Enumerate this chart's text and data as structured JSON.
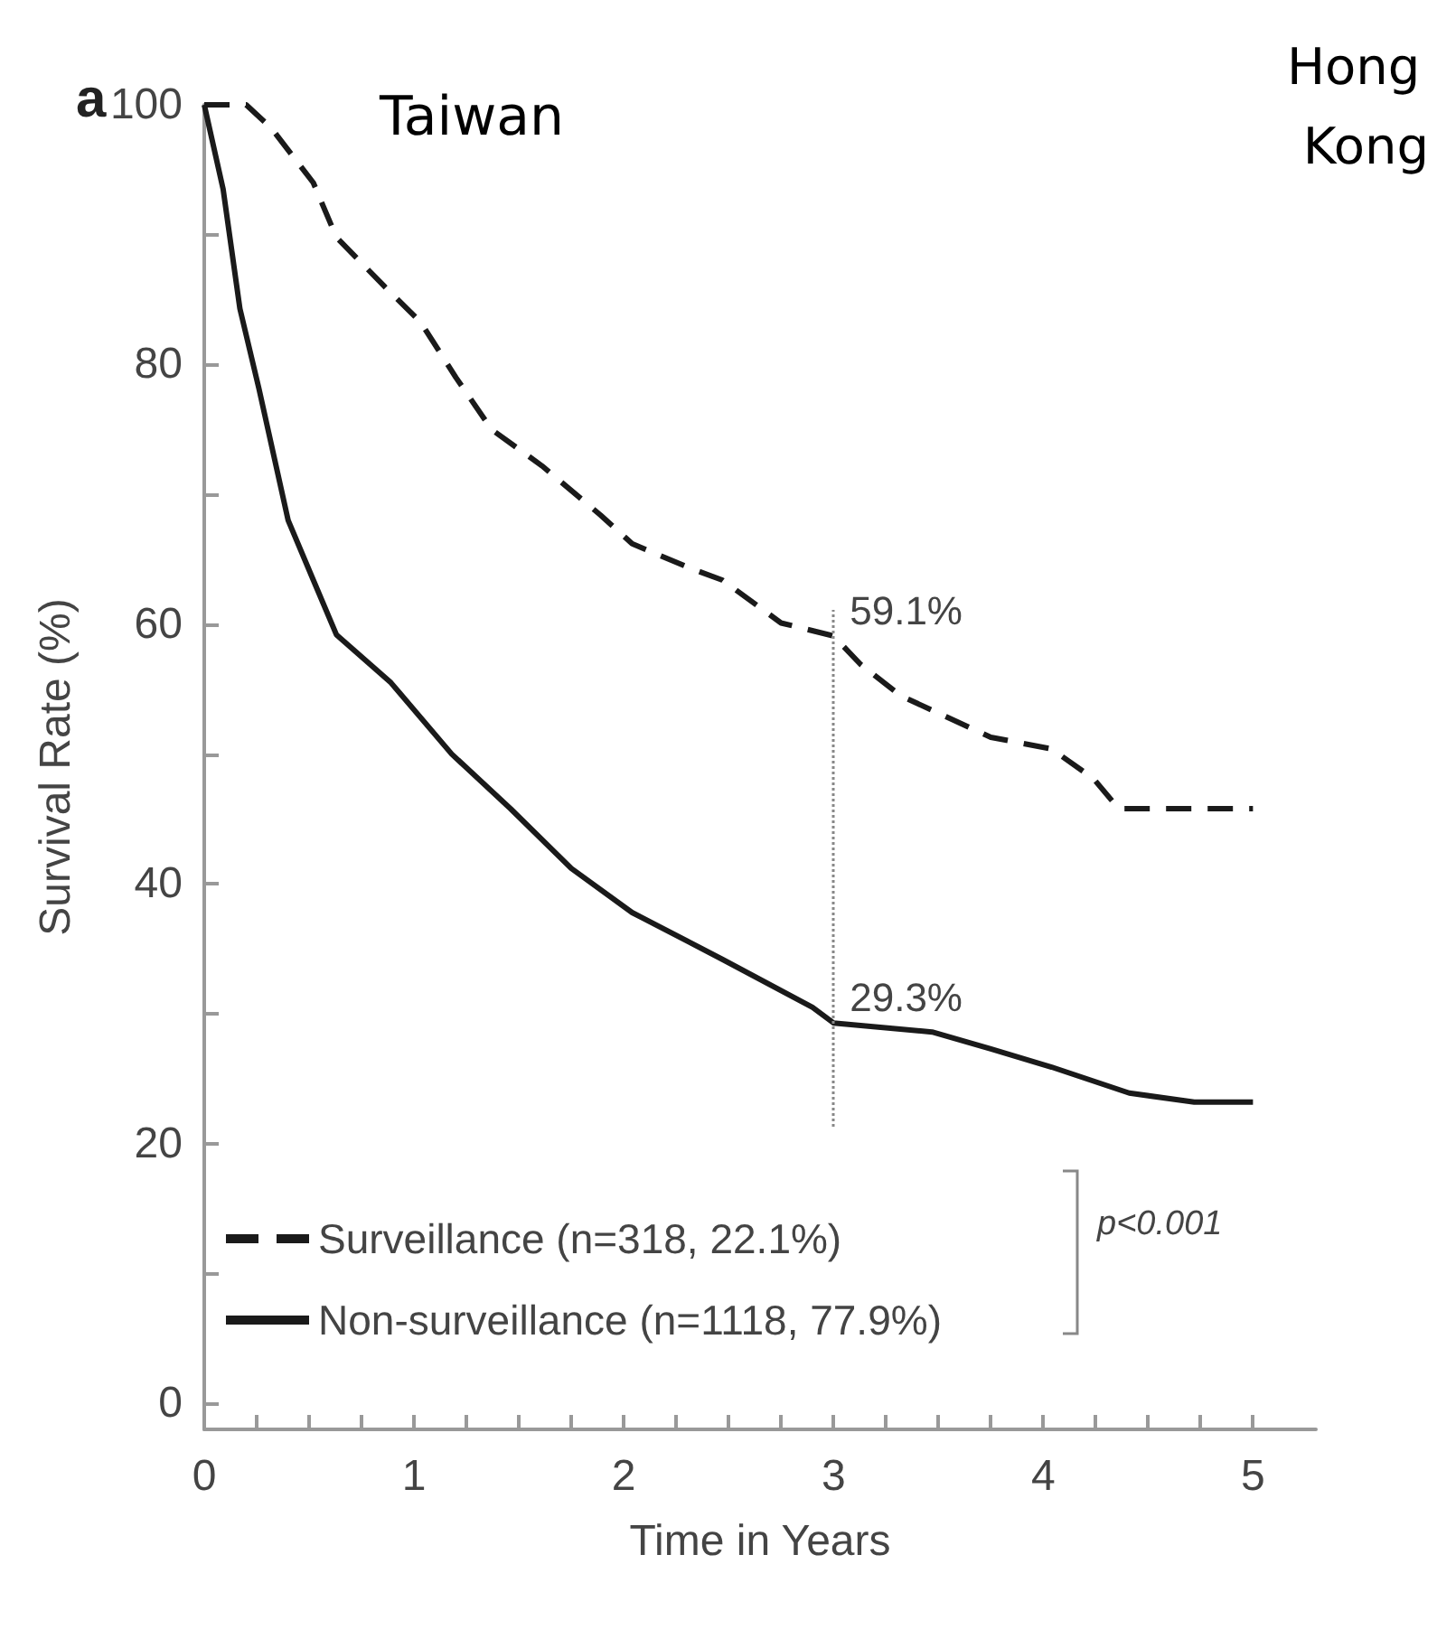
{
  "chart_data": {
    "type": "line",
    "xlabel": "Time in Years",
    "ylabel": "Survival Rate (%)",
    "xlim": [
      0,
      5.3
    ],
    "ylim": [
      -2,
      100
    ],
    "xticks": [
      0,
      {
        "value": 0.25,
        "label": null
      },
      {
        "value": 0.5,
        "label": null
      },
      {
        "value": 0.75,
        "label": null
      },
      1,
      {
        "value": 1.25,
        "label": null
      },
      {
        "value": 1.5,
        "label": null
      },
      {
        "value": 1.75,
        "label": null
      },
      2,
      {
        "value": 2.25,
        "label": null
      },
      {
        "value": 2.5,
        "label": null
      },
      {
        "value": 2.75,
        "label": null
      },
      3,
      {
        "value": 3.25,
        "label": null
      },
      {
        "value": 3.5,
        "label": null
      },
      {
        "value": 3.75,
        "label": null
      },
      4,
      {
        "value": 4.25,
        "label": null
      },
      {
        "value": 4.5,
        "label": null
      },
      {
        "value": 4.75,
        "label": null
      },
      5
    ],
    "yticks": [
      0,
      {
        "value": 10,
        "label": null
      },
      20,
      {
        "value": 30,
        "label": null
      },
      40,
      {
        "value": 50,
        "label": null
      },
      60,
      {
        "value": 70,
        "label": null
      },
      80,
      {
        "value": 90,
        "label": null
      },
      100
    ],
    "series": [
      {
        "name": "Surveillance (n=318, 22.1%)",
        "color": "#1a1a1a",
        "line_style": "dashed",
        "x": [
          0,
          0.2,
          0.32,
          0.52,
          0.63,
          0.86,
          1.03,
          1.2,
          1.37,
          1.61,
          1.89,
          2.04,
          2.32,
          2.47,
          2.75,
          3.0,
          3.13,
          3.32,
          3.75,
          4.04,
          4.24,
          4.36,
          5.0
        ],
        "values": [
          100,
          100,
          98.2,
          94,
          89.8,
          86,
          83.3,
          79,
          75,
          72.2,
          68.4,
          66.2,
          64.3,
          63.4,
          60.1,
          59.1,
          56.9,
          54.5,
          51.3,
          50.4,
          48.1,
          45.8,
          45.8
        ]
      },
      {
        "name": "Non-surveillance (n=1118, 77.9%)",
        "color": "#1a1a1a",
        "line_style": "solid",
        "x": [
          0,
          0.09,
          0.17,
          0.26,
          0.4,
          0.52,
          0.63,
          0.89,
          1.18,
          1.46,
          1.75,
          2.04,
          2.47,
          2.9,
          3.0,
          3.47,
          3.75,
          4.04,
          4.41,
          4.72,
          5.0
        ],
        "values": [
          100,
          93.5,
          84.3,
          78.2,
          68,
          63.4,
          59.2,
          55.5,
          50,
          45.8,
          41.2,
          37.8,
          34.2,
          30.5,
          29.3,
          28.6,
          27.3,
          25.9,
          23.9,
          23.2,
          23.2
        ]
      }
    ],
    "ref_lines": [
      {
        "axis": "x",
        "value": 3,
        "line_style": "dotted",
        "color": "#888888"
      }
    ],
    "annotations": [
      "a",
      "Taiwan",
      "Hong Kong",
      "p<0.001",
      {
        "text": "59.1%",
        "x": 3,
        "y": 59.1
      },
      {
        "text": "29.3%",
        "x": 3,
        "y": 29.3
      }
    ],
    "legend": "bottom left",
    "grid": false,
    "marker": "none"
  }
}
